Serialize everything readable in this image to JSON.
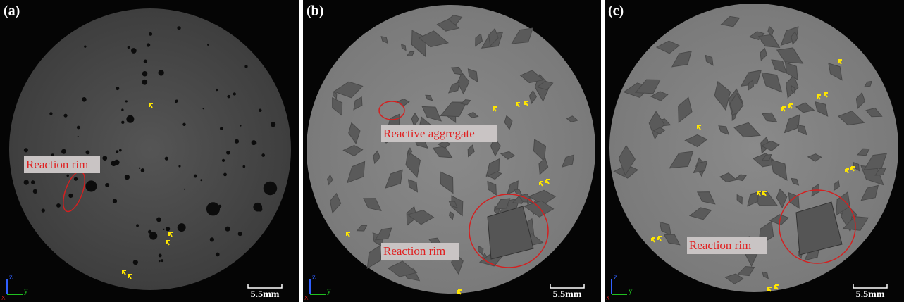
{
  "panels": [
    {
      "label": "(a)",
      "annotations": [
        "Reaction rim"
      ],
      "scale_bar": "5.5mm",
      "axes": {
        "x": "x",
        "y": "y",
        "z": "z"
      }
    },
    {
      "label": "(b)",
      "annotations": [
        "Reactive aggregate",
        "Reaction rim"
      ],
      "scale_bar": "5.5mm",
      "axes": {
        "x": "x",
        "y": "y",
        "z": "z"
      }
    },
    {
      "label": "(c)",
      "annotations": [
        "Reaction rim"
      ],
      "scale_bar": "5.5mm",
      "axes": {
        "x": "x",
        "y": "y",
        "z": "z"
      }
    }
  ]
}
